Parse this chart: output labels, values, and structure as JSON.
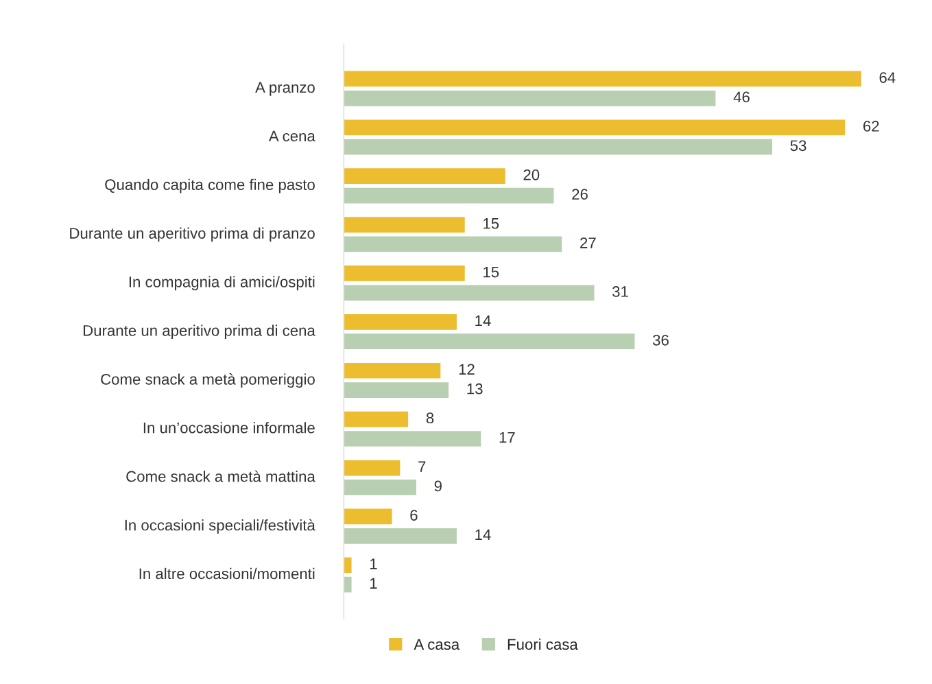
{
  "chart_data": {
    "type": "bar",
    "orientation": "horizontal",
    "data_labels": true,
    "legend": "bottom",
    "grid": false,
    "categories": [
      "A pranzo",
      "A cena",
      "Quando capita come fine pasto",
      "Durante un aperitivo prima di pranzo",
      "In compagnia di amici/ospiti",
      "Durante un aperitivo prima di cena",
      "Come snack a metà pomeriggio",
      "In un’occasione informale",
      "Come snack a metà mattina",
      "In occasioni speciali/festività",
      "In altre occasioni/momenti"
    ],
    "series": [
      {
        "name": "A casa",
        "color": "#ebbd2f",
        "values": [
          64,
          62,
          20,
          15,
          15,
          14,
          12,
          8,
          7,
          6,
          1
        ]
      },
      {
        "name": "Fuori casa",
        "color": "#b9cfb2",
        "values": [
          46,
          53,
          26,
          27,
          31,
          36,
          13,
          17,
          9,
          14,
          1
        ]
      }
    ]
  }
}
